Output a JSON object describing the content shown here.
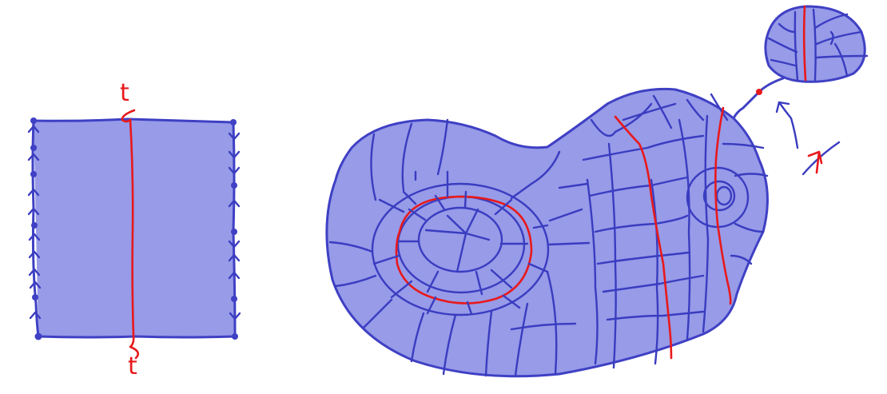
{
  "labels": {
    "top": "t",
    "bottom": "t"
  },
  "colors": {
    "surface_fill": "#979be8",
    "edge": "#3f40c4",
    "curve": "#e8191c"
  }
}
